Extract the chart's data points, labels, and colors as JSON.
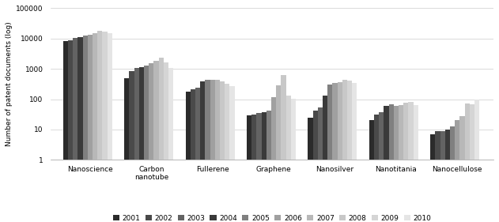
{
  "categories": [
    "Nanoscience",
    "Carbon\nnanotube",
    "Fullerene",
    "Graphene",
    "Nanosilver",
    "Nanotitania",
    "Nanocellulose"
  ],
  "years": [
    "2001",
    "2002",
    "2003",
    "2004",
    "2005",
    "2006",
    "2007",
    "2008",
    "2009",
    "2010"
  ],
  "values": {
    "2001": [
      8500,
      500,
      180,
      30,
      25,
      20,
      7
    ],
    "2002": [
      9000,
      850,
      210,
      32,
      42,
      32,
      9
    ],
    "2003": [
      10200,
      1050,
      240,
      35,
      52,
      38,
      9
    ],
    "2004": [
      11000,
      1150,
      390,
      37,
      130,
      62,
      10
    ],
    "2005": [
      12500,
      1300,
      430,
      42,
      300,
      68,
      13
    ],
    "2006": [
      13500,
      1500,
      430,
      115,
      350,
      62,
      20
    ],
    "2007": [
      15500,
      1800,
      430,
      290,
      370,
      65,
      28
    ],
    "2008": [
      18500,
      2300,
      380,
      620,
      430,
      78,
      72
    ],
    "2009": [
      17000,
      1600,
      330,
      135,
      400,
      80,
      67
    ],
    "2010": [
      15500,
      1100,
      270,
      105,
      340,
      65,
      95
    ]
  },
  "colors": [
    "#2b2b2b",
    "#4a4a4a",
    "#636363",
    "#3a3a3a",
    "#808080",
    "#a0a0a0",
    "#b8b8b8",
    "#c8c8c8",
    "#d5d5d5",
    "#e5e5e5"
  ],
  "ylabel": "Number of patent documents (log)",
  "ylim_min": 1,
  "ylim_max": 100000,
  "background_color": "#ffffff",
  "grid_color": "#cccccc"
}
